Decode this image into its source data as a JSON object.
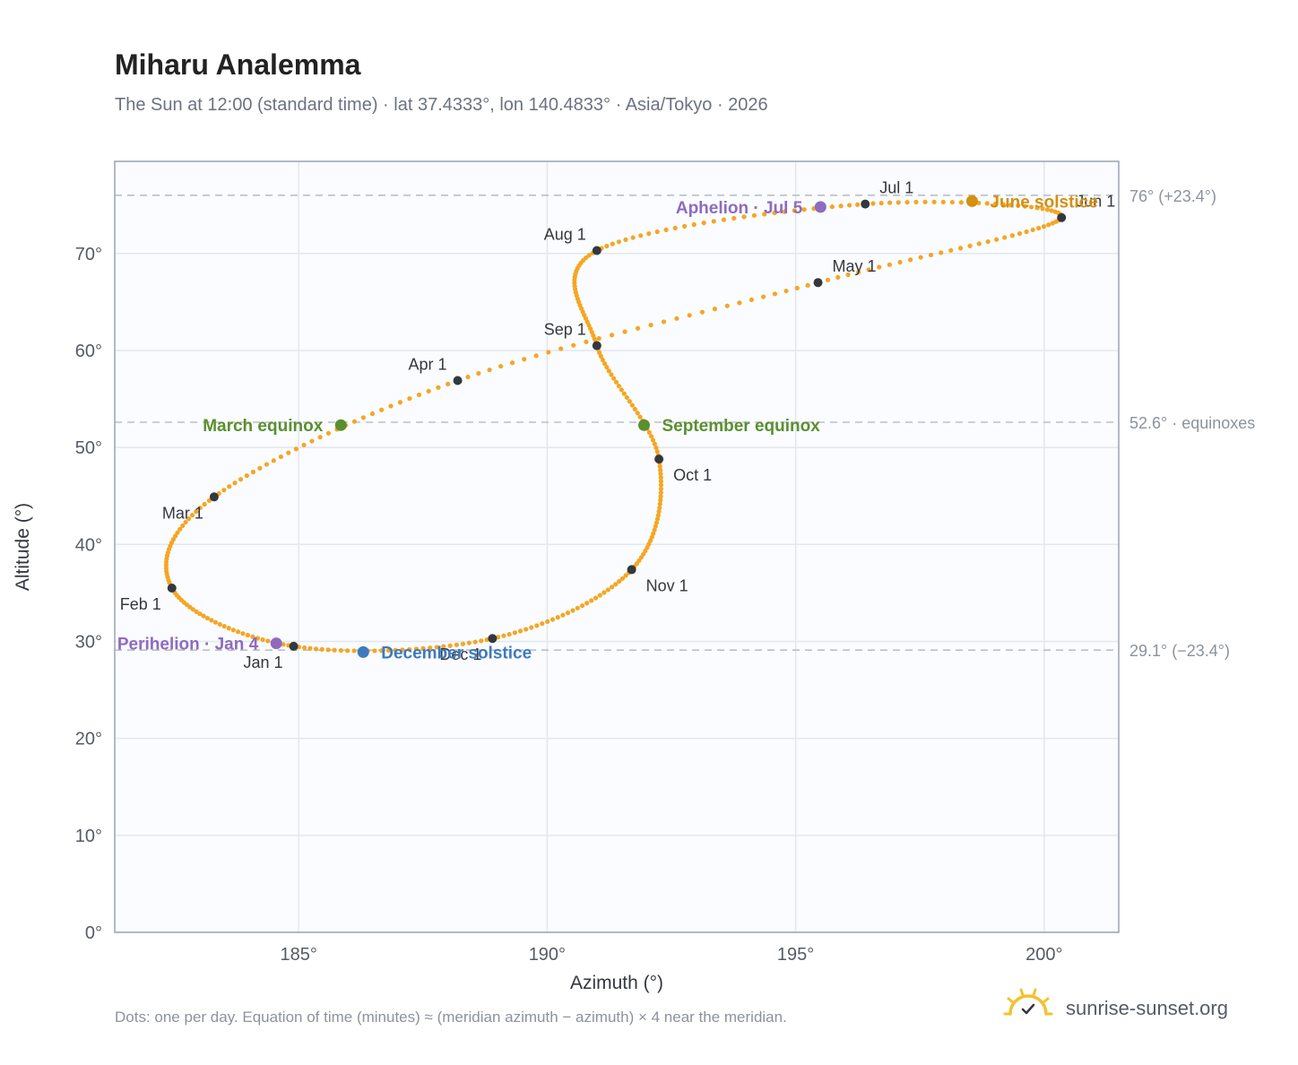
{
  "chart_data": {
    "type": "scatter",
    "title": "Miharu Analemma",
    "subtitle": "The Sun at 12:00 (standard time) · lat 37.4333°, lon 140.4833° · Asia/Tokyo · 2026",
    "xlabel": "Azimuth (°)",
    "ylabel": "Altitude (°)",
    "xlim": [
      181.3,
      201.5
    ],
    "ylim": [
      0,
      79.5
    ],
    "xticks": [
      185,
      190,
      195,
      200
    ],
    "yticks": [
      0,
      10,
      20,
      30,
      40,
      50,
      60,
      70
    ],
    "grid": true,
    "series_color": "#f5a623",
    "curve_keypoints": [
      {
        "date": "Jan 1",
        "x": 184.9,
        "y": 29.5
      },
      {
        "date": "Feb 1",
        "x": 182.45,
        "y": 35.5
      },
      {
        "date": "Mar 1",
        "x": 183.3,
        "y": 44.9
      },
      {
        "date": "Apr 1",
        "x": 188.2,
        "y": 56.9
      },
      {
        "date": "May 1",
        "x": 195.45,
        "y": 67.0
      },
      {
        "date": "Jun 1",
        "x": 200.35,
        "y": 73.7
      },
      {
        "date": "Jul 1",
        "x": 196.4,
        "y": 75.1
      },
      {
        "date": "Aug 1",
        "x": 191.0,
        "y": 70.3
      },
      {
        "date": "Sep 1",
        "x": 191.0,
        "y": 60.5
      },
      {
        "date": "Oct 1",
        "x": 192.25,
        "y": 48.8
      },
      {
        "date": "Nov 1",
        "x": 191.7,
        "y": 37.4
      },
      {
        "date": "Dec 1",
        "x": 188.9,
        "y": 30.3
      }
    ],
    "month_markers": [
      {
        "label": "Jan 1",
        "x": 184.9,
        "y": 29.5,
        "label_pos": "below-left"
      },
      {
        "label": "Feb 1",
        "x": 182.45,
        "y": 35.5,
        "label_pos": "below-left"
      },
      {
        "label": "Mar 1",
        "x": 183.3,
        "y": 44.9,
        "label_pos": "below-left"
      },
      {
        "label": "Apr 1",
        "x": 188.2,
        "y": 56.9,
        "label_pos": "above-left"
      },
      {
        "label": "May 1",
        "x": 195.45,
        "y": 67.0,
        "label_pos": "above-right"
      },
      {
        "label": "Jun 1",
        "x": 200.35,
        "y": 73.7,
        "label_pos": "above-right"
      },
      {
        "label": "Jul 1",
        "x": 196.4,
        "y": 75.1,
        "label_pos": "above-right"
      },
      {
        "label": "Aug 1",
        "x": 191.0,
        "y": 70.3,
        "label_pos": "above-left"
      },
      {
        "label": "Sep 1",
        "x": 191.0,
        "y": 60.5,
        "label_pos": "above-left"
      },
      {
        "label": "Oct 1",
        "x": 192.25,
        "y": 48.8,
        "label_pos": "below-right"
      },
      {
        "label": "Nov 1",
        "x": 191.7,
        "y": 37.4,
        "label_pos": "below-right"
      },
      {
        "label": "Dec 1",
        "x": 188.9,
        "y": 30.3,
        "label_pos": "below-left"
      }
    ],
    "events": [
      {
        "label": "June solstice",
        "x": 198.55,
        "y": 75.4,
        "color": "#d4900f",
        "label_pos": "right"
      },
      {
        "label": "Aphelion · Jul 5",
        "x": 195.5,
        "y": 74.8,
        "color": "#8e6bbf",
        "label_pos": "left"
      },
      {
        "label": "March equinox",
        "x": 185.85,
        "y": 52.3,
        "color": "#5a8f2e",
        "label_pos": "left"
      },
      {
        "label": "September equinox",
        "x": 191.95,
        "y": 52.3,
        "color": "#5a8f2e",
        "label_pos": "right"
      },
      {
        "label": "Perihelion · Jan 4",
        "x": 184.55,
        "y": 29.8,
        "color": "#8e6bbf",
        "label_pos": "left"
      },
      {
        "label": "December solstice",
        "x": 186.3,
        "y": 28.9,
        "color": "#3d7abf",
        "label_pos": "right"
      }
    ],
    "reference_lines": [
      {
        "y": 76.0,
        "label": "76° (+23.4°)"
      },
      {
        "y": 52.6,
        "label": "52.6° · equinoxes"
      },
      {
        "y": 29.1,
        "label": "29.1° (−23.4°)"
      }
    ]
  },
  "footnote": "Dots: one per day. Equation of time (minutes) ≈ (meridian azimuth − azimuth) × 4 near the meridian.",
  "brand": {
    "text": "sunrise-sunset.org",
    "icon": "sun-check-icon"
  }
}
